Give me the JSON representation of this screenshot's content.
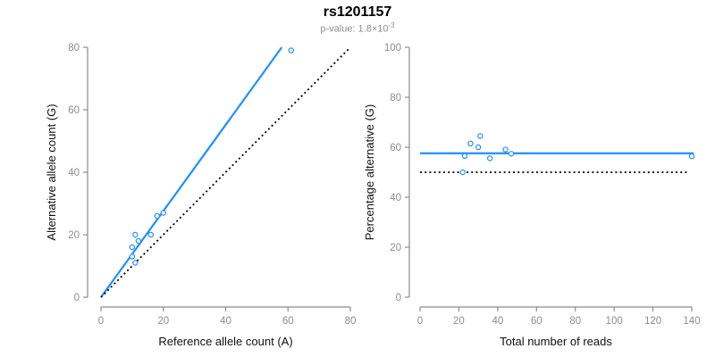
{
  "title": "rs1201157",
  "subtitle": {
    "base": "p-value: 1.8×10",
    "exponent": "-3"
  },
  "colors": {
    "accent_blue": "#1e90ff",
    "tick_text": "#8c8c8c",
    "axis_line": "#8c8c8c",
    "label_text": "#111111",
    "title_text": "#000000",
    "subtitle_text": "#8c8c8c",
    "point_fill": "#ffffff"
  },
  "chart_data": [
    {
      "type": "scatter",
      "panel": "allele-counts",
      "xlabel": "Reference allele count (A)",
      "ylabel": "Alternative allele count (G)",
      "xlim": [
        0,
        80
      ],
      "ylim": [
        0,
        80
      ],
      "xticks": [
        0,
        20,
        40,
        60,
        80
      ],
      "yticks": [
        0,
        20,
        40,
        60,
        80
      ],
      "grid": false,
      "points": [
        [
          10,
          13
        ],
        [
          11,
          11
        ],
        [
          10,
          16
        ],
        [
          11,
          20
        ],
        [
          12,
          18
        ],
        [
          16,
          20
        ],
        [
          18,
          26
        ],
        [
          20,
          27
        ],
        [
          61,
          79
        ]
      ],
      "lines": [
        {
          "name": "fit-line",
          "x1": 0,
          "y1": 0,
          "x2": 58,
          "y2": 80,
          "color": "#1e90ff",
          "style": "solid"
        },
        {
          "name": "identity-line",
          "x1": 0,
          "y1": 0,
          "x2": 80,
          "y2": 80,
          "color": "#000000",
          "style": "dotted"
        }
      ]
    },
    {
      "type": "scatter",
      "panel": "percentage-vs-reads",
      "xlabel": "Total number of reads",
      "ylabel": "Percentage alternative (G)",
      "xlim": [
        0,
        145
      ],
      "ylim": [
        0,
        100
      ],
      "xticks": [
        0,
        20,
        40,
        60,
        80,
        100,
        120,
        140
      ],
      "yticks": [
        0,
        20,
        40,
        60,
        80,
        100
      ],
      "grid": false,
      "points": [
        [
          23,
          56.5
        ],
        [
          22,
          50.0
        ],
        [
          26,
          61.5
        ],
        [
          31,
          64.5
        ],
        [
          30,
          60.0
        ],
        [
          36,
          55.6
        ],
        [
          44,
          59.1
        ],
        [
          47,
          57.4
        ],
        [
          140,
          56.4
        ]
      ],
      "hlines": [
        {
          "name": "mean-percentage-line",
          "y": 57.6,
          "x1": 0,
          "x2": 141,
          "color": "#1e90ff",
          "style": "solid"
        },
        {
          "name": "reference-50-line",
          "y": 50,
          "x1": 0,
          "x2": 137.5,
          "color": "#000000",
          "style": "dotted"
        }
      ]
    }
  ]
}
